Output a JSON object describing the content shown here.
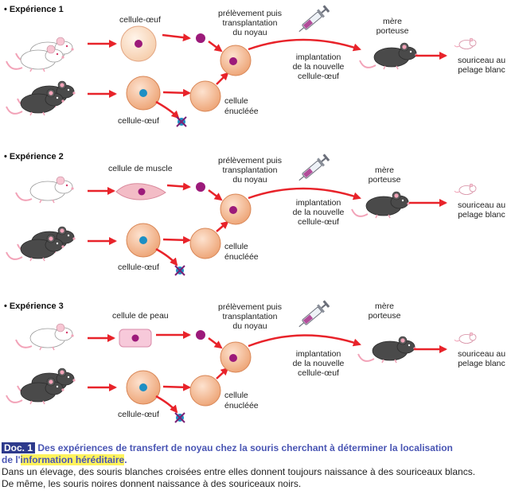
{
  "experiments": [
    {
      "title": "• Expérience 1",
      "cell_label": "cellule-œuf",
      "transfer_label": [
        "prélèvement puis",
        "transplantation",
        "du noyau"
      ],
      "recipient_label": "cellule-œuf",
      "enucleated_label": [
        "cellule",
        "énucléée"
      ],
      "implant_label": [
        "implantation",
        "de la nouvelle",
        "cellule-œuf"
      ],
      "mother_label": [
        "mère",
        "porteuse"
      ],
      "offspring_label": [
        "souriceau au",
        "pelage blanc"
      ]
    },
    {
      "title": "• Expérience 2",
      "cell_label": "cellule de muscle",
      "transfer_label": [
        "prélèvement puis",
        "transplantation",
        "du noyau"
      ],
      "recipient_label": "cellule-œuf",
      "enucleated_label": [
        "cellule",
        "énucléée"
      ],
      "implant_label": [
        "implantation",
        "de la nouvelle",
        "cellule-œuf"
      ],
      "mother_label": [
        "mère",
        "porteuse"
      ],
      "offspring_label": [
        "souriceau au",
        "pelage blanc"
      ]
    },
    {
      "title": "• Expérience 3",
      "cell_label": "cellule de peau",
      "transfer_label": [
        "prélèvement puis",
        "transplantation",
        "du noyau"
      ],
      "recipient_label": "cellule-œuf",
      "enucleated_label": [
        "cellule",
        "énucléée"
      ],
      "implant_label": [
        "implantation",
        "de la nouvelle",
        "cellule-œuf"
      ],
      "mother_label": [
        "mère",
        "porteuse"
      ],
      "offspring_label": [
        "souriceau au",
        "pelage blanc"
      ]
    }
  ],
  "caption": {
    "doc_tag": "Doc. 1",
    "title_part1": "Des expériences de transfert de noyau chez la souris cherchant à déterminer la localisation",
    "title_part2": "de l'",
    "highlight": "information héréditaire",
    "title_end": ".",
    "body1": "Dans un élevage, des souris blanches croisées entre elles donnent toujours naissance à des souriceaux blancs.",
    "body2": "De même, les souris noires donnent naissance à des souriceaux noirs."
  },
  "colors": {
    "arrow": "#e8232a",
    "cell_fill": "#f6c8a6",
    "nucleus_purple": "#9c1a7a",
    "nucleus_blue": "#1d8fc4",
    "black_mouse": "#4a4a4a",
    "white_mouse": "#ffffff",
    "pink": "#f2a3b8",
    "muscle_cell": "#f3bcc6",
    "skin_cell": "#f7c9da",
    "caption_title": "#4a56b4",
    "highlight": "#fff35c"
  },
  "icons": [
    "white-mouse-icon",
    "black-mouse-icon",
    "syringe-icon",
    "cross-icon",
    "pup-icon"
  ]
}
